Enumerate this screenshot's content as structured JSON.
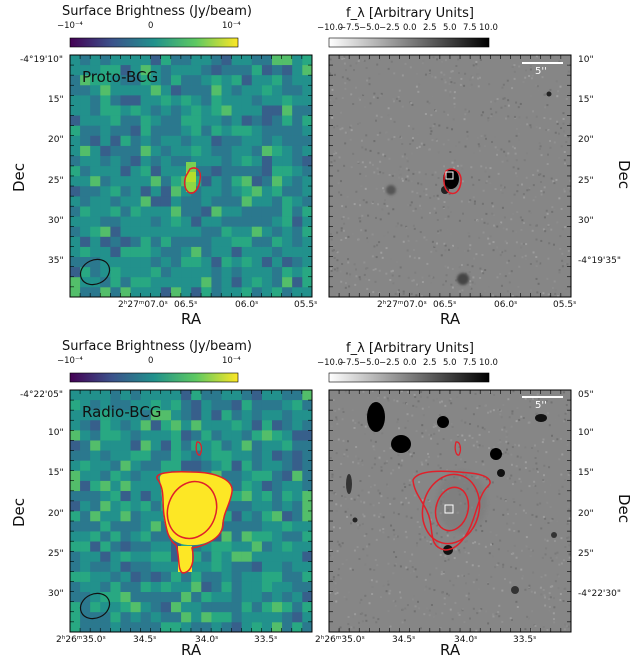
{
  "colors": {
    "viridis": [
      "#440154",
      "#3b528b",
      "#21918c",
      "#5ec962",
      "#fde725"
    ],
    "gray": [
      "#ffffff",
      "#000000"
    ],
    "contour": "#e0202a",
    "beam": "#111111"
  },
  "top": {
    "left": {
      "colorbar_title": "Surface Brightness (Jy/beam)",
      "colorbar_ticks": [
        "−10⁻⁴",
        "0",
        "10⁻⁴"
      ],
      "label": "Proto-BCG",
      "ra_ticks": [
        "2ʰ27ᵐ07.0ˢ",
        "06.5ˢ",
        "06.0ˢ",
        "05.5ˢ"
      ],
      "dec_ticks": [
        "-4°19'10\"",
        "15\"",
        "20\"",
        "25\"",
        "30\"",
        "35\""
      ],
      "xlabel": "RA",
      "ylabel": "Dec"
    },
    "right": {
      "colorbar_title": "f_λ [Arbitrary Units]",
      "colorbar_ticks": [
        "−10.0",
        "−7.5",
        "−5.0",
        "−2.5",
        "0.0",
        "2.5",
        "5.0",
        "7.5",
        "10.0"
      ],
      "scalebar": "5''",
      "ra_ticks": [
        "2ʰ27ᵐ07.0ˢ",
        "06.5ˢ",
        "06.0ˢ",
        "05.5ˢ"
      ],
      "dec_ticks": [
        "10\"",
        "15\"",
        "20\"",
        "25\"",
        "30\"",
        "-4°19'35\""
      ],
      "xlabel": "RA",
      "ylabel": "Dec"
    }
  },
  "bottom": {
    "left": {
      "colorbar_title": "Surface Brightness (Jy/beam)",
      "colorbar_ticks": [
        "−10⁻⁴",
        "0",
        "10⁻⁴"
      ],
      "label": "Radio-BCG",
      "ra_ticks": [
        "2ʰ26ᵐ35.0ˢ",
        "34.5ˢ",
        "34.0ˢ",
        "33.5ˢ"
      ],
      "dec_ticks": [
        "-4°22'05\"",
        "10\"",
        "15\"",
        "20\"",
        "25\"",
        "30\""
      ],
      "xlabel": "RA",
      "ylabel": "Dec"
    },
    "right": {
      "colorbar_title": "f_λ [Arbitrary Units]",
      "colorbar_ticks": [
        "−10.0",
        "−7.5",
        "−5.0",
        "−2.5",
        "0.0",
        "2.5",
        "5.0",
        "7.5",
        "10.0"
      ],
      "scalebar": "5''",
      "ra_ticks": [
        "2ʰ26ᵐ35.0ˢ",
        "34.5ˢ",
        "34.0ˢ",
        "33.5ˢ"
      ],
      "dec_ticks": [
        "05\"",
        "10\"",
        "15\"",
        "20\"",
        "25\"",
        "-4°22'30\""
      ],
      "xlabel": "RA",
      "ylabel": "Dec"
    }
  }
}
